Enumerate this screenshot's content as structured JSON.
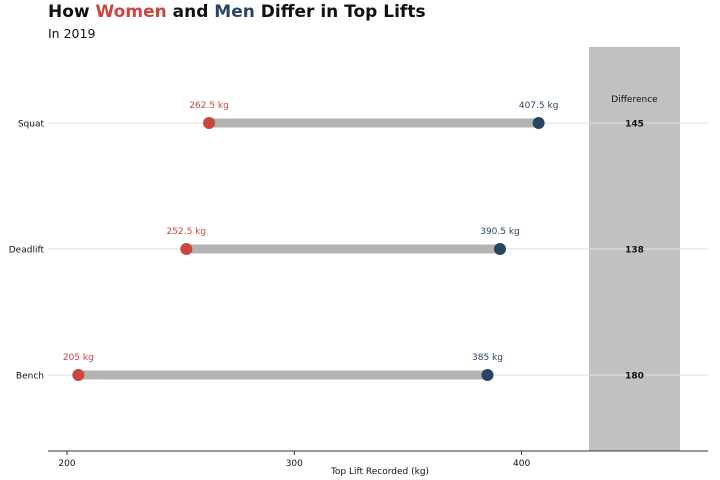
{
  "title": {
    "prefix": "How ",
    "women": "Women",
    "middle": " and ",
    "men": "Men",
    "suffix": " Differ in Top Lifts"
  },
  "subtitle": "In 2019",
  "colors": {
    "women": "#c8473e",
    "men": "#2a4563",
    "segment": "#b3b3b3",
    "difference_panel": "#c1c1c1",
    "gridline": "#dddddd",
    "axis": "#333333",
    "text": "#111111"
  },
  "chart_data": {
    "type": "dumbbell",
    "categories": [
      "Squat",
      "Deadlift",
      "Bench"
    ],
    "series": [
      {
        "name": "Women",
        "values": [
          262.5,
          252.5,
          205
        ],
        "labels": [
          "262.5 kg",
          "252.5 kg",
          "205 kg"
        ]
      },
      {
        "name": "Men",
        "values": [
          407.5,
          390.5,
          385
        ],
        "labels": [
          "407.5 kg",
          "390.5 kg",
          "385 kg"
        ]
      }
    ],
    "difference": {
      "header": "Difference",
      "values": [
        "145",
        "138",
        "180"
      ]
    },
    "xlabel": "Top Lift Recorded (kg)",
    "xticks": [
      200,
      300,
      400
    ],
    "xlim": [
      192,
      482
    ]
  }
}
